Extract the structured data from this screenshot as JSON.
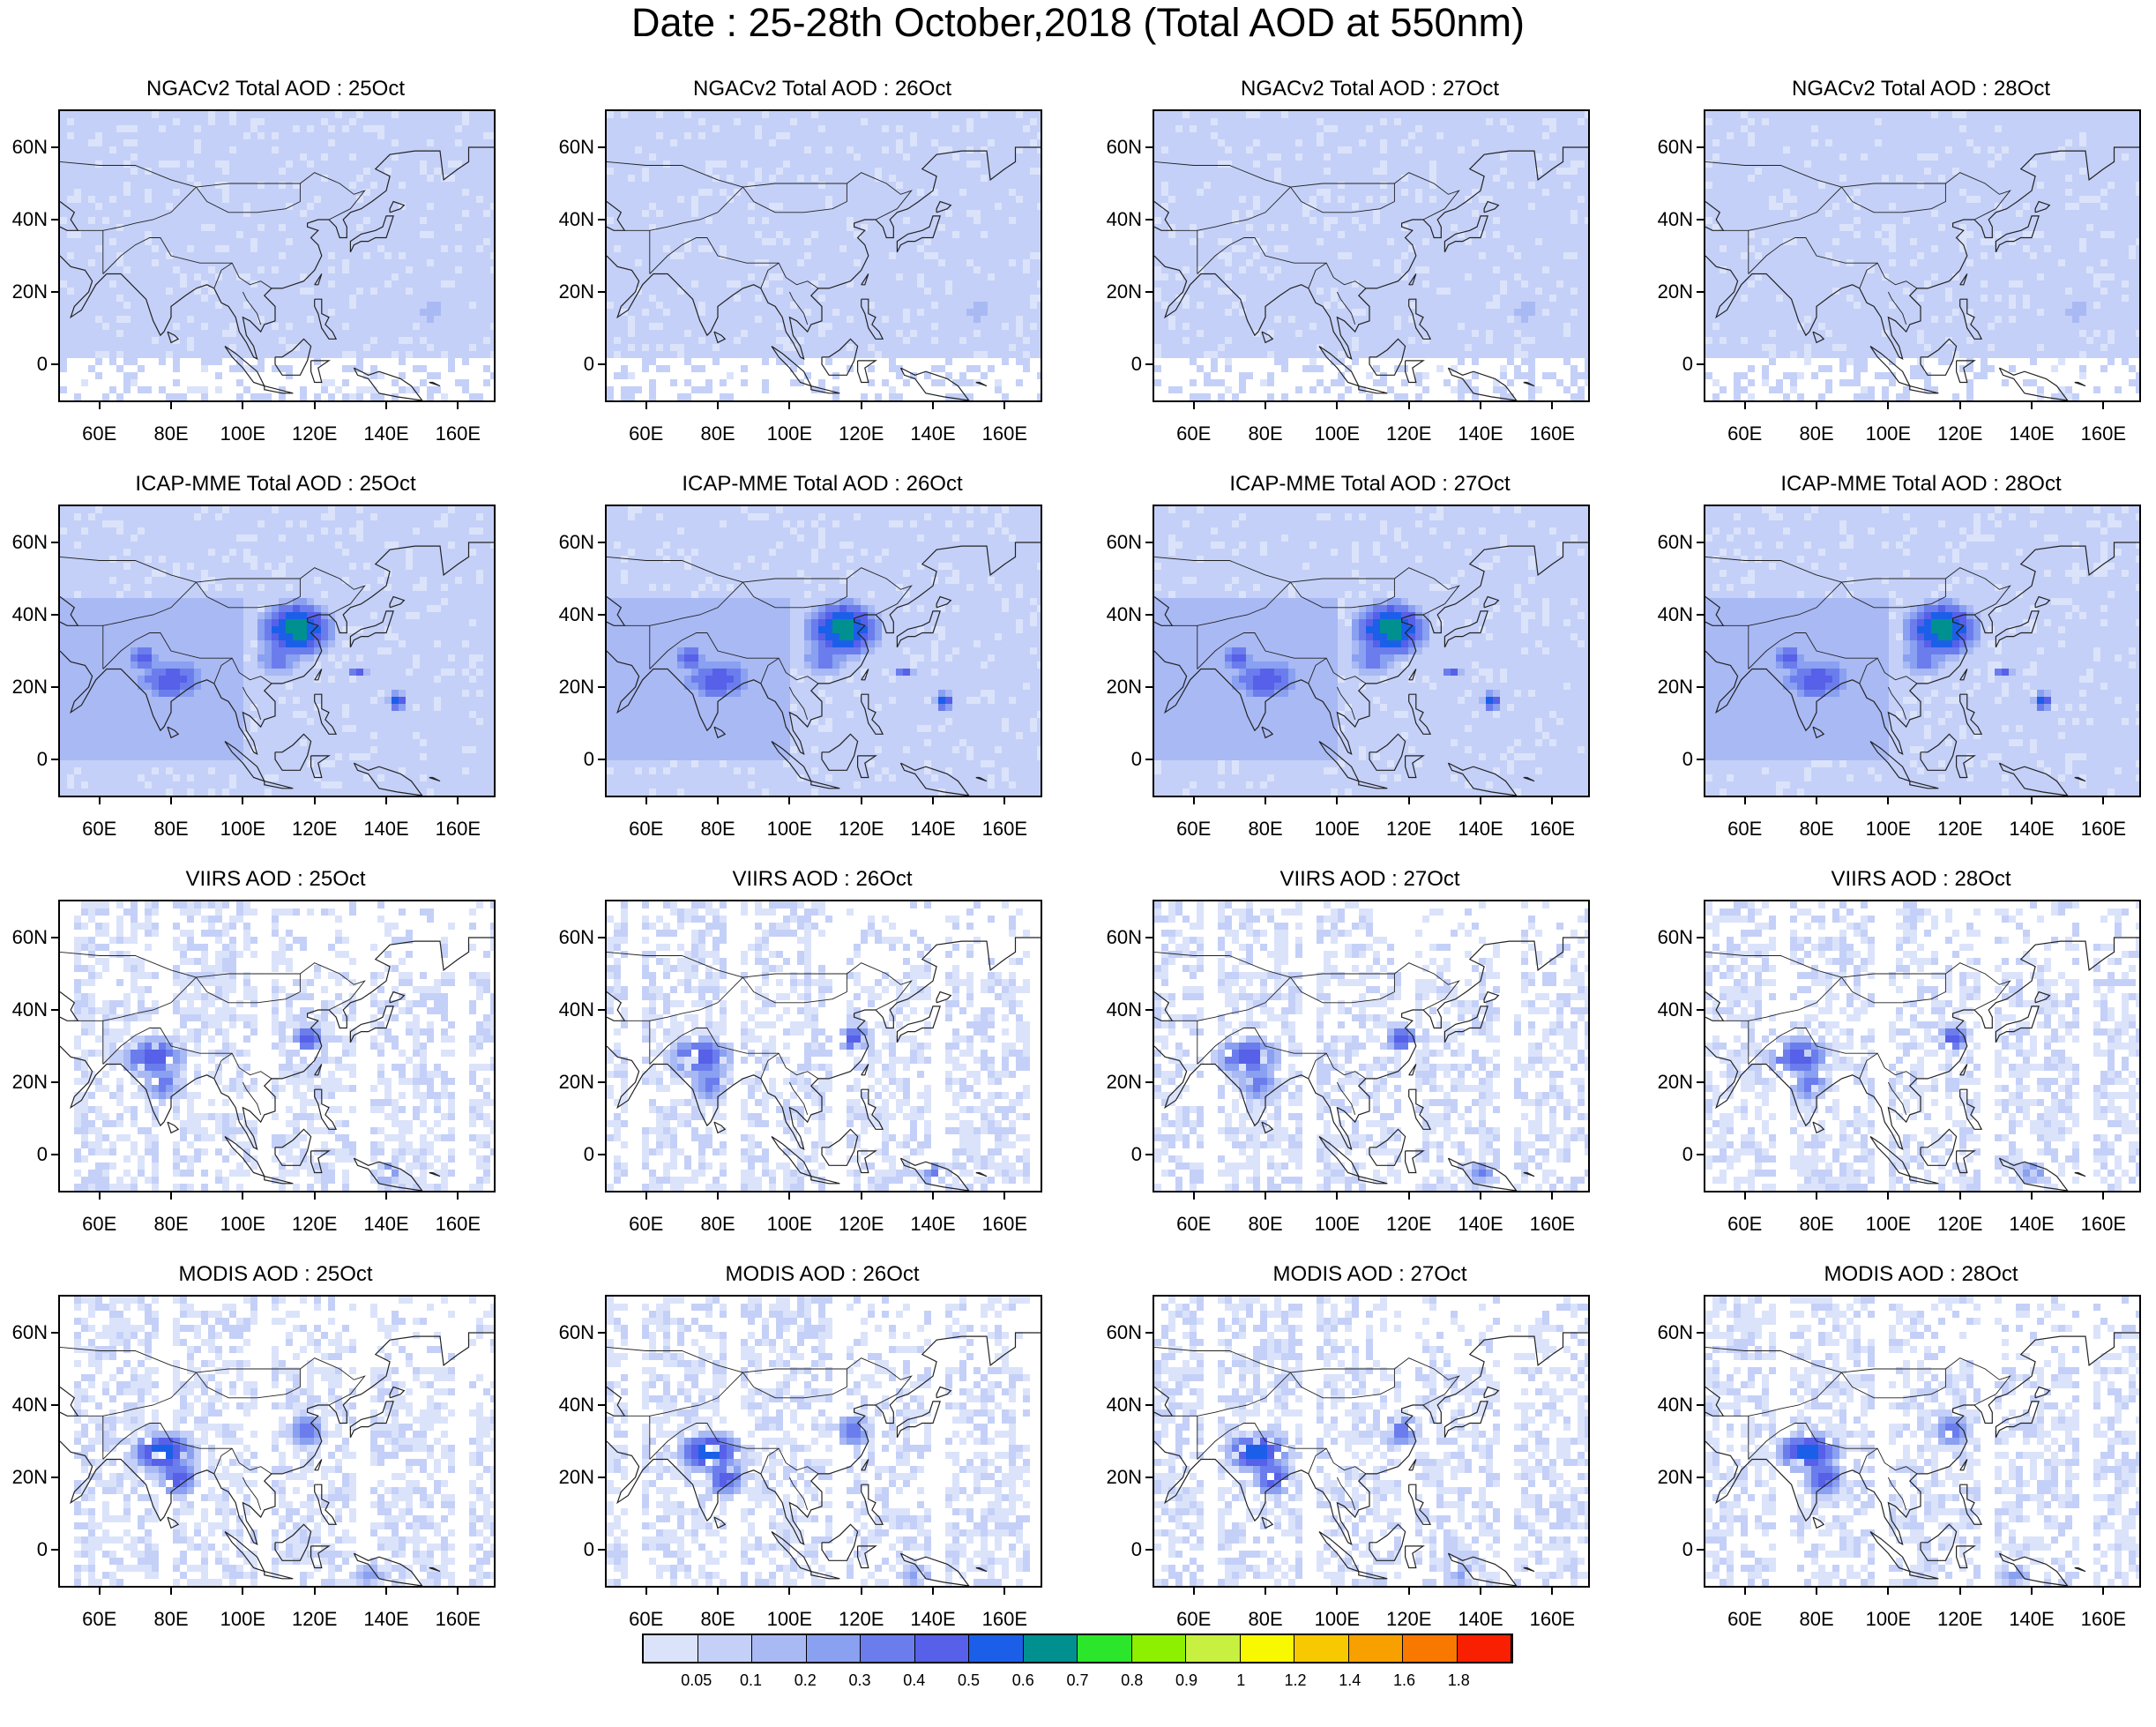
{
  "title": "Date : 25-28th October,2018 (Total AOD at 550nm)",
  "axes": {
    "y_labels": [
      "60N",
      "40N",
      "20N",
      "0"
    ],
    "y_values": [
      60,
      40,
      20,
      0
    ],
    "x_labels": [
      "60E",
      "80E",
      "100E",
      "120E",
      "140E",
      "160E"
    ],
    "x_values": [
      60,
      80,
      100,
      120,
      140,
      160
    ],
    "lon_range": [
      49,
      170
    ],
    "lat_range": [
      -10,
      70
    ]
  },
  "panels": [
    {
      "title": "NGACv2 Total AOD : 25Oct",
      "source": "NGACv2",
      "day": 25
    },
    {
      "title": "NGACv2 Total AOD : 26Oct",
      "source": "NGACv2",
      "day": 26
    },
    {
      "title": "NGACv2 Total AOD : 27Oct",
      "source": "NGACv2",
      "day": 27
    },
    {
      "title": "NGACv2 Total AOD : 28Oct",
      "source": "NGACv2",
      "day": 28
    },
    {
      "title": "ICAP-MME Total AOD : 25Oct",
      "source": "ICAP-MME",
      "day": 25
    },
    {
      "title": "ICAP-MME Total AOD : 26Oct",
      "source": "ICAP-MME",
      "day": 26
    },
    {
      "title": "ICAP-MME Total AOD : 27Oct",
      "source": "ICAP-MME",
      "day": 27
    },
    {
      "title": "ICAP-MME Total AOD : 28Oct",
      "source": "ICAP-MME",
      "day": 28
    },
    {
      "title": "VIIRS AOD : 25Oct",
      "source": "VIIRS",
      "day": 25
    },
    {
      "title": "VIIRS AOD : 26Oct",
      "source": "VIIRS",
      "day": 26
    },
    {
      "title": "VIIRS AOD : 27Oct",
      "source": "VIIRS",
      "day": 27
    },
    {
      "title": "VIIRS AOD : 28Oct",
      "source": "VIIRS",
      "day": 28
    },
    {
      "title": "MODIS AOD : 25Oct",
      "source": "MODIS",
      "day": 25
    },
    {
      "title": "MODIS AOD : 26Oct",
      "source": "MODIS",
      "day": 26
    },
    {
      "title": "MODIS AOD : 27Oct",
      "source": "MODIS",
      "day": 27
    },
    {
      "title": "MODIS AOD : 28Oct",
      "source": "MODIS",
      "day": 28
    }
  ],
  "colorbar": {
    "labels": [
      "0.05",
      "0.1",
      "0.2",
      "0.3",
      "0.4",
      "0.5",
      "0.6",
      "0.7",
      "0.8",
      "0.9",
      "1",
      "1.2",
      "1.4",
      "1.6",
      "1.8"
    ],
    "colors": [
      "#ffffff",
      "#dbe3fb",
      "#c4d0f7",
      "#a9b9f4",
      "#8aa0f0",
      "#6b7ded",
      "#5760e8",
      "#1b5fe9",
      "#009090",
      "#2ce62c",
      "#8cf000",
      "#c8f040",
      "#f8f800",
      "#f8c800",
      "#f8a000",
      "#f87800",
      "#f82000"
    ]
  }
}
